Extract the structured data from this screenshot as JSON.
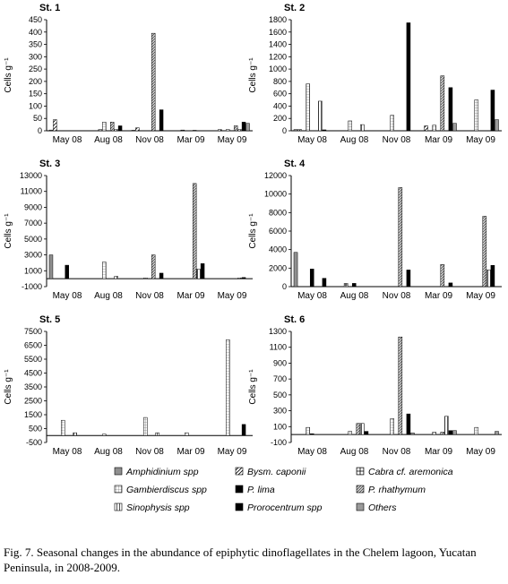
{
  "figure": {
    "caption": "Fig. 7. Seasonal changes in the abundance of epiphytic dinoflagellates in the Chelem lagoon, Yucatan Peninsula, in 2008-2009."
  },
  "patterns": {
    "amphidinium": {
      "fill": "#8f8f8f",
      "hatch": "none"
    },
    "bysmatrum": {
      "fill": "#ffffff",
      "hatch": "diag"
    },
    "cabra": {
      "fill": "#ffffff",
      "hatch": "plus"
    },
    "gambierdiscus": {
      "fill": "#ffffff",
      "hatch": "grid"
    },
    "plima": {
      "fill": "#000000",
      "hatch": "none"
    },
    "prhathymum": {
      "fill": "#d8d8d8",
      "hatch": "diag-dense"
    },
    "sinophysis": {
      "fill": "#ffffff",
      "hatch": "vert"
    },
    "prorocentrum": {
      "fill": "#000000",
      "hatch": "none"
    },
    "others": {
      "fill": "#9a9a9a",
      "hatch": "none"
    }
  },
  "legend": [
    {
      "key": "amphidinium",
      "label": "Amphidinium spp"
    },
    {
      "key": "bysmatrum",
      "label": "Bysm. caponii"
    },
    {
      "key": "cabra",
      "label": "Cabra cf. aremonica"
    },
    {
      "key": "gambierdiscus",
      "label": "Gambierdiscus spp"
    },
    {
      "key": "plima",
      "label": "P. lima"
    },
    {
      "key": "prhathymum",
      "label": "P. rhathymum"
    },
    {
      "key": "sinophysis",
      "label": "Sinophysis spp"
    },
    {
      "key": "prorocentrum",
      "label": "Prorocentrum spp"
    },
    {
      "key": "others",
      "label": "Others"
    }
  ],
  "chart_data": [
    {
      "type": "bar",
      "title": "St. 1",
      "ylabel": "Cells g⁻¹",
      "ylim": [
        0,
        450
      ],
      "yticks": [
        0,
        50,
        100,
        150,
        200,
        250,
        300,
        350,
        400,
        450
      ],
      "categories": [
        "May 08",
        "Aug 08",
        "Nov 08",
        "Mar 09",
        "May 09"
      ],
      "series": [
        {
          "key": "amphidinium",
          "values": [
            3,
            0,
            2,
            0,
            0
          ]
        },
        {
          "key": "bysmatrum",
          "values": [
            45,
            0,
            12,
            0,
            5
          ]
        },
        {
          "key": "cabra",
          "values": [
            0,
            5,
            0,
            3,
            0
          ]
        },
        {
          "key": "gambierdiscus",
          "values": [
            0,
            35,
            0,
            0,
            5
          ]
        },
        {
          "key": "plima",
          "values": [
            0,
            0,
            0,
            0,
            0
          ]
        },
        {
          "key": "prhathymum",
          "values": [
            0,
            35,
            395,
            2,
            20
          ]
        },
        {
          "key": "sinophysis",
          "values": [
            0,
            5,
            0,
            0,
            5
          ]
        },
        {
          "key": "prorocentrum",
          "values": [
            0,
            20,
            85,
            0,
            35
          ]
        },
        {
          "key": "others",
          "values": [
            0,
            0,
            0,
            0,
            30
          ]
        }
      ]
    },
    {
      "type": "bar",
      "title": "St. 2",
      "ylabel": "Cells g⁻¹",
      "ylim": [
        0,
        1800
      ],
      "yticks": [
        0,
        200,
        400,
        600,
        800,
        1000,
        1200,
        1400,
        1600,
        1800
      ],
      "categories": [
        "May 08",
        "Aug 08",
        "Nov 08",
        "Mar 09",
        "May 09"
      ],
      "series": [
        {
          "key": "amphidinium",
          "values": [
            20,
            0,
            0,
            0,
            0
          ]
        },
        {
          "key": "bysmatrum",
          "values": [
            20,
            0,
            0,
            80,
            0
          ]
        },
        {
          "key": "cabra",
          "values": [
            0,
            0,
            0,
            0,
            0
          ]
        },
        {
          "key": "gambierdiscus",
          "values": [
            760,
            160,
            250,
            90,
            500
          ]
        },
        {
          "key": "plima",
          "values": [
            0,
            0,
            0,
            0,
            0
          ]
        },
        {
          "key": "prhathymum",
          "values": [
            0,
            0,
            0,
            890,
            0
          ]
        },
        {
          "key": "sinophysis",
          "values": [
            480,
            100,
            0,
            0,
            0
          ]
        },
        {
          "key": "prorocentrum",
          "values": [
            15,
            0,
            1750,
            700,
            660
          ]
        },
        {
          "key": "others",
          "values": [
            0,
            0,
            0,
            120,
            180
          ]
        }
      ]
    },
    {
      "type": "bar",
      "title": "St. 3",
      "ylabel": "Cells g⁻¹",
      "ylim": [
        -1000,
        13000
      ],
      "yticks": [
        -1000,
        1000,
        3000,
        5000,
        7000,
        9000,
        11000,
        13000
      ],
      "categories": [
        "May 08",
        "Aug 08",
        "Nov 08",
        "Mar 09",
        "May 09"
      ],
      "series": [
        {
          "key": "amphidinium",
          "values": [
            3000,
            0,
            0,
            0,
            0
          ]
        },
        {
          "key": "bysmatrum",
          "values": [
            0,
            0,
            0,
            0,
            0
          ]
        },
        {
          "key": "cabra",
          "values": [
            0,
            0,
            0,
            0,
            0
          ]
        },
        {
          "key": "gambierdiscus",
          "values": [
            0,
            2100,
            100,
            0,
            0
          ]
        },
        {
          "key": "plima",
          "values": [
            1700,
            0,
            0,
            0,
            0
          ]
        },
        {
          "key": "prhathymum",
          "values": [
            0,
            0,
            3000,
            12000,
            0
          ]
        },
        {
          "key": "sinophysis",
          "values": [
            0,
            300,
            0,
            1200,
            100
          ]
        },
        {
          "key": "prorocentrum",
          "values": [
            0,
            0,
            700,
            1900,
            150
          ]
        },
        {
          "key": "others",
          "values": [
            0,
            0,
            0,
            0,
            0
          ]
        }
      ]
    },
    {
      "type": "bar",
      "title": "St. 4",
      "ylabel": "Cells g⁻¹",
      "ylim": [
        0,
        12000
      ],
      "yticks": [
        0,
        2000,
        4000,
        6000,
        8000,
        10000,
        12000
      ],
      "categories": [
        "May 08",
        "Aug 08",
        "Nov 08",
        "Mar 09",
        "May 09"
      ],
      "series": [
        {
          "key": "amphidinium",
          "values": [
            3700,
            0,
            0,
            0,
            0
          ]
        },
        {
          "key": "bysmatrum",
          "values": [
            0,
            0,
            0,
            0,
            0
          ]
        },
        {
          "key": "cabra",
          "values": [
            0,
            350,
            0,
            0,
            0
          ]
        },
        {
          "key": "gambierdiscus",
          "values": [
            0,
            0,
            0,
            0,
            0
          ]
        },
        {
          "key": "plima",
          "values": [
            1900,
            350,
            0,
            0,
            0
          ]
        },
        {
          "key": "prhathymum",
          "values": [
            0,
            0,
            10700,
            2400,
            7600
          ]
        },
        {
          "key": "sinophysis",
          "values": [
            0,
            0,
            0,
            0,
            1800
          ]
        },
        {
          "key": "prorocentrum",
          "values": [
            900,
            0,
            1800,
            400,
            2300
          ]
        },
        {
          "key": "others",
          "values": [
            0,
            0,
            0,
            0,
            0
          ]
        }
      ]
    },
    {
      "type": "bar",
      "title": "St. 5",
      "ylabel": "Cells g⁻¹",
      "ylim": [
        -500,
        7500
      ],
      "yticks": [
        -500,
        500,
        1500,
        2500,
        3500,
        4500,
        5500,
        6500,
        7500
      ],
      "categories": [
        "May 08",
        "Aug 08",
        "Nov 08",
        "Mar 09",
        "May 09"
      ],
      "series": [
        {
          "key": "amphidinium",
          "values": [
            0,
            0,
            0,
            0,
            0
          ]
        },
        {
          "key": "bysmatrum",
          "values": [
            0,
            0,
            0,
            0,
            0
          ]
        },
        {
          "key": "cabra",
          "values": [
            0,
            0,
            0,
            0,
            0
          ]
        },
        {
          "key": "gambierdiscus",
          "values": [
            1100,
            100,
            1300,
            200,
            6900
          ]
        },
        {
          "key": "plima",
          "values": [
            0,
            0,
            0,
            0,
            0
          ]
        },
        {
          "key": "prhathymum",
          "values": [
            0,
            0,
            0,
            0,
            0
          ]
        },
        {
          "key": "sinophysis",
          "values": [
            200,
            0,
            200,
            0,
            0
          ]
        },
        {
          "key": "prorocentrum",
          "values": [
            0,
            0,
            0,
            0,
            800
          ]
        },
        {
          "key": "others",
          "values": [
            0,
            0,
            0,
            0,
            0
          ]
        }
      ]
    },
    {
      "type": "bar",
      "title": "St. 6",
      "ylabel": "Cells g⁻¹",
      "ylim": [
        -100,
        1300
      ],
      "yticks": [
        -100,
        100,
        300,
        500,
        700,
        900,
        1100,
        1300
      ],
      "categories": [
        "May 08",
        "Aug 08",
        "Nov 08",
        "Mar 09",
        "May 09"
      ],
      "series": [
        {
          "key": "amphidinium",
          "values": [
            0,
            0,
            0,
            0,
            0
          ]
        },
        {
          "key": "bysmatrum",
          "values": [
            0,
            0,
            0,
            0,
            0
          ]
        },
        {
          "key": "cabra",
          "values": [
            0,
            0,
            0,
            0,
            0
          ]
        },
        {
          "key": "gambierdiscus",
          "values": [
            90,
            40,
            200,
            30,
            90
          ]
        },
        {
          "key": "plima",
          "values": [
            10,
            0,
            0,
            0,
            0
          ]
        },
        {
          "key": "prhathymum",
          "values": [
            0,
            140,
            1230,
            30,
            0
          ]
        },
        {
          "key": "sinophysis",
          "values": [
            0,
            140,
            0,
            230,
            0
          ]
        },
        {
          "key": "prorocentrum",
          "values": [
            0,
            40,
            260,
            50,
            0
          ]
        },
        {
          "key": "others",
          "values": [
            0,
            0,
            20,
            50,
            40
          ]
        }
      ]
    }
  ]
}
